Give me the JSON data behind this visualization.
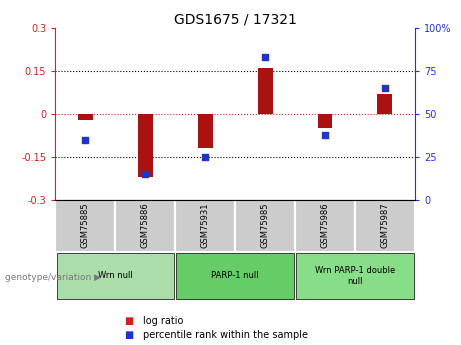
{
  "title": "GDS1675 / 17321",
  "samples": [
    "GSM75885",
    "GSM75886",
    "GSM75931",
    "GSM75985",
    "GSM75986",
    "GSM75987"
  ],
  "log_ratio": [
    -0.02,
    -0.22,
    -0.12,
    0.16,
    -0.05,
    0.07
  ],
  "percentile_rank": [
    35,
    15,
    25,
    83,
    38,
    65
  ],
  "ylim_left": [
    -0.3,
    0.3
  ],
  "ylim_right": [
    0,
    100
  ],
  "yticks_left": [
    -0.3,
    -0.15,
    0,
    0.15,
    0.3
  ],
  "yticks_right": [
    0,
    25,
    50,
    75,
    100
  ],
  "ytick_labels_left": [
    "-0.3",
    "-0.15",
    "0",
    "0.15",
    "0.3"
  ],
  "ytick_labels_right": [
    "0",
    "25",
    "50",
    "75",
    "100%"
  ],
  "hlines_black": [
    -0.15,
    0.15
  ],
  "hline_red": 0,
  "bar_color": "#aa1111",
  "dot_color": "#2233cc",
  "groups": [
    {
      "label": "Wrn null",
      "start": 0,
      "end": 1,
      "color": "#aaddaa"
    },
    {
      "label": "PARP-1 null",
      "start": 2,
      "end": 3,
      "color": "#66cc66"
    },
    {
      "label": "Wrn PARP-1 double\nnull",
      "start": 4,
      "end": 5,
      "color": "#88dd88"
    }
  ],
  "legend_log_ratio_color": "#cc2222",
  "legend_percentile_color": "#2233cc",
  "bg_color": "#ffffff",
  "sample_box_color": "#cccccc",
  "bar_width": 0.25
}
